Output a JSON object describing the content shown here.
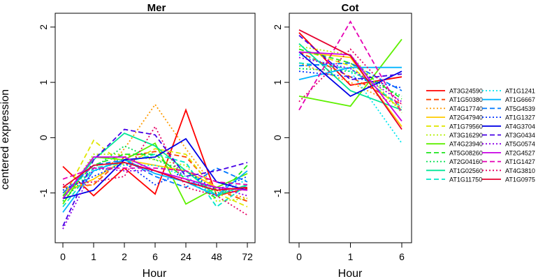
{
  "ylabel": "centered expression",
  "chart_data": [
    {
      "type": "line",
      "title": "Mer",
      "xlabel": "Hour",
      "categories": [
        "0",
        "1",
        "2",
        "6",
        "24",
        "48",
        "72"
      ],
      "ylim": [
        -1.9,
        2.25
      ],
      "yticks": [
        -1,
        0,
        1,
        2
      ],
      "series": [
        {
          "name": "AT3G24590",
          "values": [
            -0.52,
            -1.05,
            -0.55,
            -1.02,
            0.5,
            -1.05,
            -0.92
          ]
        },
        {
          "name": "AT1G50380",
          "values": [
            -0.9,
            -0.85,
            -0.35,
            -0.25,
            -0.35,
            -0.95,
            -1.15
          ]
        },
        {
          "name": "AT4G17740",
          "values": [
            -0.95,
            -0.85,
            -0.2,
            0.6,
            -0.2,
            -0.95,
            -1.1
          ]
        },
        {
          "name": "AT2G47940",
          "values": [
            -1.0,
            -0.75,
            -0.4,
            -0.5,
            -0.6,
            -0.9,
            -0.95
          ]
        },
        {
          "name": "AT1G79560",
          "values": [
            -1.1,
            -0.05,
            -0.5,
            -0.2,
            -0.3,
            -1.0,
            -1.25
          ]
        },
        {
          "name": "AT3G16290",
          "values": [
            -1.15,
            -0.3,
            -0.3,
            -0.4,
            -0.5,
            -1.15,
            -1.1
          ]
        },
        {
          "name": "AT4G23940",
          "values": [
            -1.2,
            -0.35,
            -0.4,
            -0.1,
            -1.2,
            -0.9,
            -0.65
          ]
        },
        {
          "name": "AT5G08260",
          "values": [
            -1.05,
            -0.5,
            -0.3,
            -0.3,
            -0.75,
            -1.1,
            -0.5
          ]
        },
        {
          "name": "AT2G04160",
          "values": [
            -1.15,
            -0.55,
            -0.15,
            -0.4,
            -0.6,
            -1.0,
            -0.9
          ]
        },
        {
          "name": "AT1G02560",
          "values": [
            -1.1,
            -0.4,
            0.08,
            -0.15,
            -0.6,
            -1.05,
            -0.85
          ]
        },
        {
          "name": "AT1G11750",
          "values": [
            -1.25,
            -0.55,
            -0.45,
            -0.3,
            -0.45,
            -1.25,
            -0.85
          ]
        },
        {
          "name": "AT1G1241",
          "values": [
            -0.95,
            -0.6,
            -0.5,
            -0.5,
            -0.7,
            -1.05,
            -0.75
          ]
        },
        {
          "name": "AT1G6667",
          "values": [
            -1.35,
            -0.6,
            -0.4,
            -0.65,
            -0.8,
            -1.05,
            -0.6
          ]
        },
        {
          "name": "AT5G4539",
          "values": [
            -1.0,
            -0.5,
            -0.4,
            -0.7,
            -0.9,
            -0.55,
            -0.8
          ]
        },
        {
          "name": "AT1G1327",
          "values": [
            -0.95,
            -0.7,
            -0.45,
            -0.85,
            -0.6,
            -0.95,
            -0.7
          ]
        },
        {
          "name": "AT4G3704",
          "values": [
            -1.1,
            -0.95,
            -0.4,
            -0.35,
            -0.02,
            -0.8,
            -0.95
          ]
        },
        {
          "name": "AT3G0434",
          "values": [
            -1.6,
            -0.4,
            0.15,
            0.05,
            -0.7,
            -0.6,
            -0.45
          ]
        },
        {
          "name": "AT5G0574",
          "values": [
            -1.65,
            -0.55,
            -0.6,
            -0.6,
            -0.8,
            -0.9,
            -1.05
          ]
        },
        {
          "name": "AT2G4527",
          "values": [
            -1.1,
            -0.35,
            -0.35,
            -0.6,
            -0.75,
            -0.9,
            -0.95
          ]
        },
        {
          "name": "AT1G1427",
          "values": [
            -0.75,
            -0.55,
            -0.55,
            -0.55,
            -0.6,
            -0.8,
            -0.85
          ]
        },
        {
          "name": "AT4G3810",
          "values": [
            -0.85,
            -0.8,
            -0.7,
            0.2,
            -0.9,
            -1.05,
            -1.4
          ]
        },
        {
          "name": "AT1G0975",
          "values": [
            -0.9,
            -0.5,
            -0.45,
            -0.6,
            -0.8,
            -0.95,
            -0.9
          ]
        }
      ]
    },
    {
      "type": "line",
      "title": "Cot",
      "xlabel": "Hour",
      "categories": [
        "0",
        "1",
        "6"
      ],
      "ylim": [
        -1.9,
        2.25
      ],
      "yticks": [
        -1,
        0,
        1,
        2
      ],
      "series": [
        {
          "name": "AT3G24590",
          "values": [
            1.9,
            0.95,
            1.1
          ]
        },
        {
          "name": "AT1G50380",
          "values": [
            1.55,
            1.1,
            0.6
          ]
        },
        {
          "name": "AT4G17740",
          "values": [
            1.35,
            1.0,
            0.55
          ]
        },
        {
          "name": "AT2G47940",
          "values": [
            1.55,
            1.45,
            0.2
          ]
        },
        {
          "name": "AT1G79560",
          "values": [
            1.6,
            1.3,
            0.5
          ]
        },
        {
          "name": "AT3G16290",
          "values": [
            1.65,
            1.5,
            0.45
          ]
        },
        {
          "name": "AT4G23940",
          "values": [
            0.75,
            0.57,
            1.78
          ]
        },
        {
          "name": "AT5G08260",
          "values": [
            1.6,
            1.35,
            0.7
          ]
        },
        {
          "name": "AT2G04160",
          "values": [
            1.25,
            1.2,
            0.75
          ]
        },
        {
          "name": "AT1G02560",
          "values": [
            1.7,
            0.85,
            0.5
          ]
        },
        {
          "name": "AT1G11750",
          "values": [
            1.35,
            1.25,
            0.55
          ]
        },
        {
          "name": "AT1G1241",
          "values": [
            1.5,
            1.2,
            -0.1
          ]
        },
        {
          "name": "AT1G6667",
          "values": [
            1.05,
            1.27,
            1.27
          ]
        },
        {
          "name": "AT5G4539",
          "values": [
            1.3,
            1.35,
            0.85
          ]
        },
        {
          "name": "AT1G1327",
          "values": [
            1.2,
            1.1,
            0.9
          ]
        },
        {
          "name": "AT4G3704",
          "values": [
            1.55,
            0.75,
            1.2
          ]
        },
        {
          "name": "AT3G0434",
          "values": [
            1.85,
            1.05,
            1.15
          ]
        },
        {
          "name": "AT5G0574",
          "values": [
            1.45,
            1.25,
            0.65
          ]
        },
        {
          "name": "AT2G4527",
          "values": [
            1.55,
            1.5,
            0.3
          ]
        },
        {
          "name": "AT1G1427",
          "values": [
            0.5,
            2.1,
            0.45
          ]
        },
        {
          "name": "AT4G3810",
          "values": [
            0.65,
            1.6,
            0.6
          ]
        },
        {
          "name": "AT1G0975",
          "values": [
            1.95,
            1.48,
            0.15
          ]
        }
      ]
    }
  ],
  "legend": {
    "entries": [
      {
        "name": "AT3G24590",
        "color": "#ff0000",
        "dash": "solid"
      },
      {
        "name": "AT1G50380",
        "color": "#ff4500",
        "dash": "dashed"
      },
      {
        "name": "AT4G17740",
        "color": "#ff9a00",
        "dash": "dotted"
      },
      {
        "name": "AT2G47940",
        "color": "#ffcc00",
        "dash": "solid"
      },
      {
        "name": "AT1G79560",
        "color": "#e0e600",
        "dash": "dashed"
      },
      {
        "name": "AT3G16290",
        "color": "#b4f000",
        "dash": "dotted"
      },
      {
        "name": "AT4G23940",
        "color": "#5ef000",
        "dash": "solid"
      },
      {
        "name": "AT5G08260",
        "color": "#1ee61e",
        "dash": "dashed"
      },
      {
        "name": "AT2G04160",
        "color": "#00e050",
        "dash": "dotted"
      },
      {
        "name": "AT1G02560",
        "color": "#00e696",
        "dash": "solid"
      },
      {
        "name": "AT1G11750",
        "color": "#00e6c8",
        "dash": "dashed"
      },
      {
        "name": "AT1G1241",
        "color": "#00e6f0",
        "dash": "dotted"
      },
      {
        "name": "AT1G6667",
        "color": "#00b4ff",
        "dash": "solid"
      },
      {
        "name": "AT5G4539",
        "color": "#0078ff",
        "dash": "dashed"
      },
      {
        "name": "AT1G1327",
        "color": "#0032ff",
        "dash": "dotted"
      },
      {
        "name": "AT4G3704",
        "color": "#0000e6",
        "dash": "solid"
      },
      {
        "name": "AT3G0434",
        "color": "#4600e6",
        "dash": "dashed"
      },
      {
        "name": "AT5G0574",
        "color": "#8c00e6",
        "dash": "dotted"
      },
      {
        "name": "AT2G4527",
        "color": "#c800e6",
        "dash": "solid"
      },
      {
        "name": "AT1G1427",
        "color": "#e600b4",
        "dash": "dashed"
      },
      {
        "name": "AT4G3810",
        "color": "#e60064",
        "dash": "dotted"
      },
      {
        "name": "AT1G0975",
        "color": "#e6002d",
        "dash": "solid"
      }
    ]
  }
}
